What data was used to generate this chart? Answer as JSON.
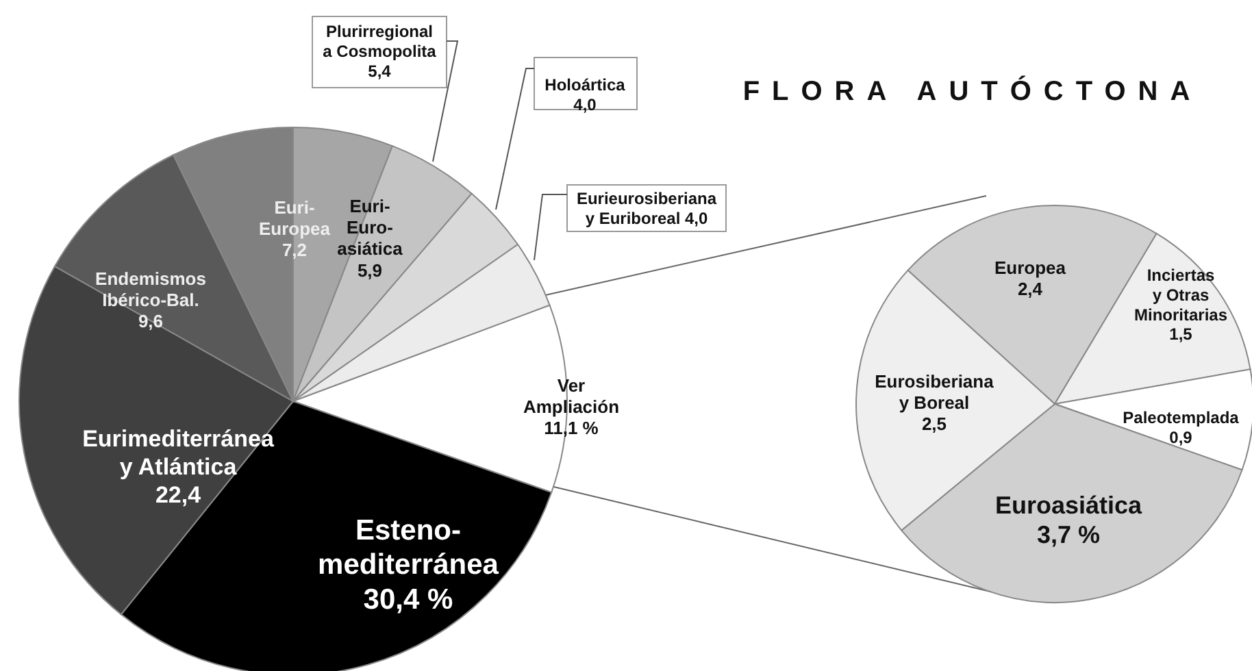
{
  "chart_data": [
    {
      "type": "pie",
      "title": "FLORA AUTÓCTONA",
      "categories": [
        "Euri-\nEuro-\nasiática",
        "Plurirregional\na Cosmopolita",
        "Holoártica",
        "Eurieurosiberiana\ny Euriboreal",
        "Ver\nAmpliación",
        "Esteno-\nmediterránea",
        "Eurimediterránea\ny Atlántica",
        "Endemismos\nIbérico-Bal.",
        "Euri-\nEuropea"
      ],
      "values": [
        5.9,
        5.4,
        4.0,
        4.0,
        11.1,
        30.4,
        22.4,
        9.6,
        7.2
      ],
      "value_labels": [
        "5,9",
        "5,4",
        "4,0",
        "4,0",
        "11,1 %",
        "30,4 %",
        "22,4",
        "9,6",
        "7,2"
      ],
      "colors": [
        "#a6a6a6",
        "#c4c4c4",
        "#d9d9d9",
        "#ececec",
        "#ffffff",
        "#000000",
        "#404040",
        "#595959",
        "#808080"
      ]
    },
    {
      "type": "pie",
      "categories": [
        "Europea",
        "Inciertas\ny Otras\nMinoritarias",
        "Paleotemplada",
        "Euroasiática",
        "Eurosiberiana\ny Boreal"
      ],
      "values": [
        2.4,
        1.5,
        0.9,
        3.7,
        2.5
      ],
      "value_labels": [
        "2,4",
        "1,5",
        "0,9",
        "3,7 %",
        "2,5"
      ],
      "colors": [
        "#d0d0d0",
        "#efefef",
        "#ffffff",
        "#d0d0d0",
        "#efefef"
      ]
    }
  ]
}
